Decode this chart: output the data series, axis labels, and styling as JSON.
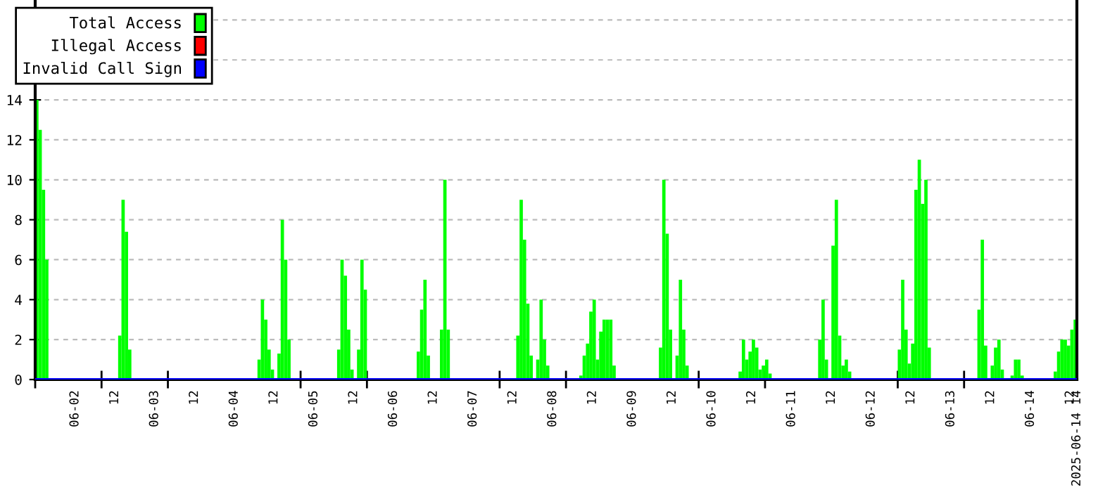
{
  "chart_data": {
    "type": "bar",
    "xlim": [
      "2025-06-01T12:00",
      "2025-06-14T14:00"
    ],
    "ylim": [
      0,
      19
    ],
    "yticks": [
      0,
      2,
      4,
      6,
      8,
      10,
      12,
      14,
      {
        "value": 16,
        "label": null
      },
      {
        "value": 18,
        "label": null
      }
    ],
    "xticks": [
      {
        "value": "2025-06-02T00:00",
        "label": "06-02"
      },
      {
        "value": "2025-06-02T12:00",
        "label": "12"
      },
      {
        "value": "2025-06-03T00:00",
        "label": "06-03"
      },
      {
        "value": "2025-06-03T12:00",
        "label": "12"
      },
      {
        "value": "2025-06-04T00:00",
        "label": "06-04"
      },
      {
        "value": "2025-06-04T12:00",
        "label": "12"
      },
      {
        "value": "2025-06-05T00:00",
        "label": "06-05"
      },
      {
        "value": "2025-06-05T12:00",
        "label": "12"
      },
      {
        "value": "2025-06-06T00:00",
        "label": "06-06"
      },
      {
        "value": "2025-06-06T12:00",
        "label": "12"
      },
      {
        "value": "2025-06-07T00:00",
        "label": "06-07"
      },
      {
        "value": "2025-06-07T12:00",
        "label": "12"
      },
      {
        "value": "2025-06-08T00:00",
        "label": "06-08"
      },
      {
        "value": "2025-06-08T12:00",
        "label": "12"
      },
      {
        "value": "2025-06-09T00:00",
        "label": "06-09"
      },
      {
        "value": "2025-06-09T12:00",
        "label": "12"
      },
      {
        "value": "2025-06-10T00:00",
        "label": "06-10"
      },
      {
        "value": "2025-06-10T12:00",
        "label": "12"
      },
      {
        "value": "2025-06-11T00:00",
        "label": "06-11"
      },
      {
        "value": "2025-06-11T12:00",
        "label": "12"
      },
      {
        "value": "2025-06-12T00:00",
        "label": "06-12"
      },
      {
        "value": "2025-06-12T12:00",
        "label": "12"
      },
      {
        "value": "2025-06-13T00:00",
        "label": "06-13"
      },
      {
        "value": "2025-06-13T12:00",
        "label": "12"
      },
      {
        "value": "2025-06-14T00:00",
        "label": "06-14"
      },
      {
        "value": "2025-06-14T12:00",
        "label": "12"
      },
      {
        "value": "2025-06-14T14:00",
        "label": "2025-06-14 14"
      },
      {
        "value": "2025-06-01T12:00",
        "label": null
      },
      {
        "value": "2025-06-02T08:00",
        "label": null
      },
      {
        "value": "2025-06-03T04:00",
        "label": null
      },
      {
        "value": "2025-06-04T20:00",
        "label": null
      },
      {
        "value": "2025-06-05T16:00",
        "label": null
      },
      {
        "value": "2025-06-07T08:00",
        "label": null
      },
      {
        "value": "2025-06-08T04:00",
        "label": null
      },
      {
        "value": "2025-06-09T20:00",
        "label": null
      },
      {
        "value": "2025-06-10T16:00",
        "label": null
      },
      {
        "value": "2025-06-12T08:00",
        "label": null
      },
      {
        "value": "2025-06-13T04:00",
        "label": null
      }
    ],
    "grid": "y",
    "legend": "top left",
    "series": [
      {
        "name": "Total Access",
        "color": "#00ff00",
        "x": [
          "2025-06-01T12:00",
          "2025-06-01T13:00",
          "2025-06-01T14:00",
          "2025-06-01T15:00",
          "2025-06-02T13:00",
          "2025-06-02T14:00",
          "2025-06-02T15:00",
          "2025-06-02T16:00",
          "2025-06-04T07:00",
          "2025-06-04T08:00",
          "2025-06-04T09:00",
          "2025-06-04T10:00",
          "2025-06-04T11:00",
          "2025-06-04T13:00",
          "2025-06-04T14:00",
          "2025-06-04T15:00",
          "2025-06-04T16:00",
          "2025-06-05T07:00",
          "2025-06-05T08:00",
          "2025-06-05T09:00",
          "2025-06-05T10:00",
          "2025-06-05T11:00",
          "2025-06-05T13:00",
          "2025-06-05T14:00",
          "2025-06-05T15:00",
          "2025-06-06T07:00",
          "2025-06-06T08:00",
          "2025-06-06T09:00",
          "2025-06-06T10:00",
          "2025-06-06T14:00",
          "2025-06-06T15:00",
          "2025-06-06T16:00",
          "2025-06-07T13:00",
          "2025-06-07T14:00",
          "2025-06-07T15:00",
          "2025-06-07T16:00",
          "2025-06-07T17:00",
          "2025-06-07T19:00",
          "2025-06-07T20:00",
          "2025-06-07T21:00",
          "2025-06-07T22:00",
          "2025-06-08T08:00",
          "2025-06-08T09:00",
          "2025-06-08T10:00",
          "2025-06-08T11:00",
          "2025-06-08T12:00",
          "2025-06-08T13:00",
          "2025-06-08T14:00",
          "2025-06-08T15:00",
          "2025-06-08T16:00",
          "2025-06-08T17:00",
          "2025-06-08T18:00",
          "2025-06-09T08:00",
          "2025-06-09T09:00",
          "2025-06-09T10:00",
          "2025-06-09T11:00",
          "2025-06-09T13:00",
          "2025-06-09T14:00",
          "2025-06-09T15:00",
          "2025-06-09T16:00",
          "2025-06-10T08:00",
          "2025-06-10T09:00",
          "2025-06-10T10:00",
          "2025-06-10T11:00",
          "2025-06-10T12:00",
          "2025-06-10T13:00",
          "2025-06-10T14:00",
          "2025-06-10T15:00",
          "2025-06-10T16:00",
          "2025-06-10T17:00",
          "2025-06-11T08:00",
          "2025-06-11T09:00",
          "2025-06-11T10:00",
          "2025-06-11T12:00",
          "2025-06-11T13:00",
          "2025-06-11T14:00",
          "2025-06-11T15:00",
          "2025-06-11T16:00",
          "2025-06-11T17:00",
          "2025-06-12T08:00",
          "2025-06-12T09:00",
          "2025-06-12T10:00",
          "2025-06-12T11:00",
          "2025-06-12T12:00",
          "2025-06-12T13:00",
          "2025-06-12T14:00",
          "2025-06-12T15:00",
          "2025-06-12T16:00",
          "2025-06-12T17:00",
          "2025-06-13T08:00",
          "2025-06-13T09:00",
          "2025-06-13T10:00",
          "2025-06-13T12:00",
          "2025-06-13T13:00",
          "2025-06-13T14:00",
          "2025-06-13T15:00",
          "2025-06-13T18:00",
          "2025-06-13T19:00",
          "2025-06-13T20:00",
          "2025-06-13T21:00",
          "2025-06-14T07:00",
          "2025-06-14T08:00",
          "2025-06-14T09:00",
          "2025-06-14T10:00",
          "2025-06-14T11:00",
          "2025-06-14T12:00",
          "2025-06-14T13:00"
        ],
        "values": [
          14,
          12.5,
          9.5,
          6,
          2.2,
          9,
          7.4,
          1.5,
          1,
          4,
          3,
          1.5,
          0.5,
          1.3,
          8,
          6,
          2,
          1.5,
          6,
          5.2,
          2.5,
          0.5,
          1.5,
          6,
          4.5,
          1.4,
          3.5,
          5,
          1.2,
          2.5,
          10,
          2.5,
          2.2,
          9,
          7,
          3.8,
          1.2,
          1,
          4,
          2,
          0.7,
          0.2,
          1.2,
          1.8,
          3.4,
          4,
          1,
          2.4,
          3,
          3,
          3,
          0.7,
          1.6,
          10,
          7.3,
          2.5,
          1.2,
          5,
          2.5,
          0.7,
          0.4,
          2,
          1,
          1.4,
          2,
          1.6,
          0.5,
          0.7,
          1,
          0.3,
          2,
          4,
          1,
          6.7,
          9,
          2.2,
          0.7,
          1,
          0.4,
          1.5,
          5,
          2.5,
          0.8,
          1.8,
          9.5,
          11,
          8.8,
          10,
          1.6,
          3.5,
          7,
          1.7,
          0.7,
          1.6,
          2,
          0.5,
          0.2,
          1,
          1,
          0.2,
          0.4,
          1.4,
          2,
          2,
          1.7,
          2.5,
          3
        ]
      },
      {
        "name": "Illegal Access",
        "color": "#ff0000",
        "type": "line"
      },
      {
        "name": "Invalid Call Sign",
        "color": "#0000ff",
        "type": "line",
        "x": [
          "2025-06-01T12:00",
          "2025-06-14T14:00"
        ],
        "values": [
          0,
          0
        ]
      }
    ]
  }
}
